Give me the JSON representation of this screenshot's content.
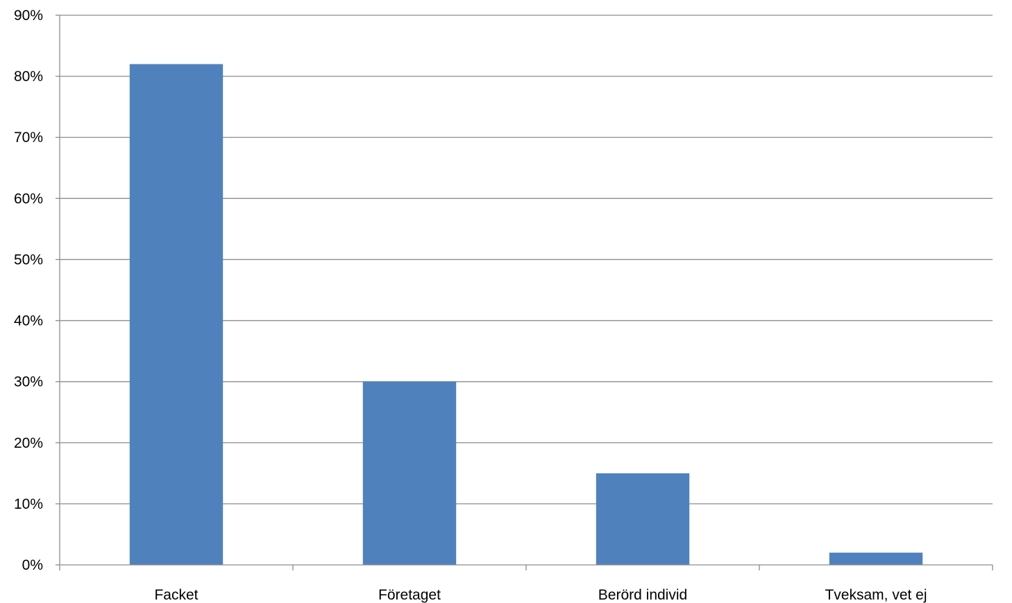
{
  "chart_data": {
    "type": "bar",
    "categories": [
      "Facket",
      "Företaget",
      "Berörd individ",
      "Tveksam, vet ej"
    ],
    "values": [
      82,
      30,
      15,
      2
    ],
    "ylim": [
      0,
      90
    ],
    "ytick_step": 10,
    "ytick_labels": [
      "0%",
      "10%",
      "20%",
      "30%",
      "40%",
      "50%",
      "60%",
      "70%",
      "80%",
      "90%"
    ],
    "grid": true,
    "legend": "none",
    "bar_color": "#4f81bd",
    "grid_color": "#8c8c8c"
  }
}
